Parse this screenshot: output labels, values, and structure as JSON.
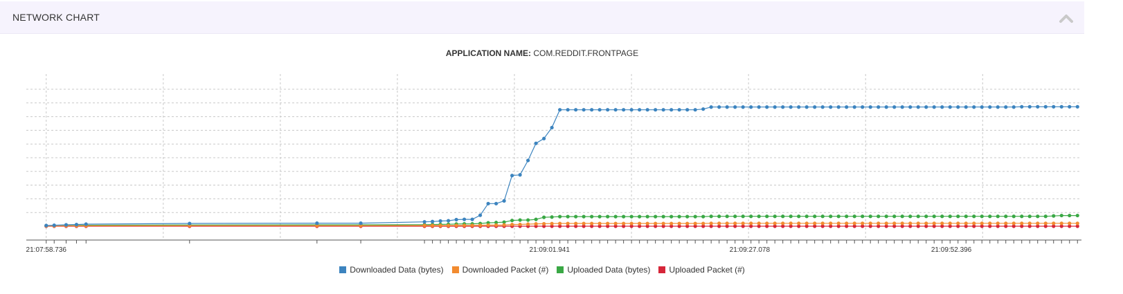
{
  "panel": {
    "title": "NETWORK CHART",
    "collapse_icon": "chevron-up-icon"
  },
  "subtitle": {
    "label": "APPLICATION NAME:",
    "value": "COM.REDDIT.FRONTPAGE"
  },
  "chart_data": {
    "type": "line",
    "title": "APPLICATION NAME: COM.REDDIT.FRONTPAGE",
    "x_tick_labels": [
      "21:07:58.736",
      "21:09:01.941",
      "21:09:27.078",
      "21:09:52.396"
    ],
    "x_tick_values": [
      0,
      63.205,
      88.342,
      113.66
    ],
    "x_range": [
      -2.5,
      130
    ],
    "y_range": [
      0,
      10
    ],
    "y_axis_labels_shown": false,
    "grid": true,
    "legend_position": "bottom",
    "x": [
      0,
      1,
      2.5,
      3.8,
      5,
      18,
      34,
      39.5,
      47.5,
      48.5,
      49.5,
      50.5,
      51.5,
      52.5,
      53.5,
      54.5,
      55.5,
      56.5,
      57.5,
      58.5,
      59.5,
      60.5,
      61.5,
      62.5,
      63.5,
      64.5,
      65.5,
      66.5,
      67.5,
      68.5,
      69.5,
      70.5,
      71.5,
      72.5,
      73.5,
      74.5,
      75.5,
      76.5,
      77.5,
      78.5,
      79.5,
      80.5,
      81.5,
      82.5,
      83.5,
      84.5,
      85.5,
      86.5,
      87.5,
      88.5,
      89.5,
      90.5,
      91.5,
      92.5,
      93.5,
      94.5,
      95.5,
      96.5,
      97.5,
      98.5,
      99.5,
      100.5,
      101.5,
      102.5,
      103.5,
      104.5,
      105.5,
      106.5,
      107.5,
      108.5,
      109.5,
      110.5,
      111.5,
      112.5,
      113.5,
      114.5,
      115.5,
      116.5,
      117.5,
      118.5,
      119.5,
      120.5,
      121.5,
      122.5,
      123.5,
      124.5,
      125.5,
      126.5,
      127.5,
      128.5,
      129.5
    ],
    "series": [
      {
        "name": "Downloaded Data (bytes)",
        "color": "#3c84bf",
        "values": [
          0.05,
          0.07,
          0.1,
          0.12,
          0.15,
          0.2,
          0.22,
          0.22,
          0.32,
          0.34,
          0.38,
          0.4,
          0.48,
          0.5,
          0.5,
          0.8,
          1.65,
          1.65,
          1.85,
          3.7,
          3.75,
          4.8,
          6.05,
          6.4,
          7.2,
          8.5,
          8.5,
          8.5,
          8.5,
          8.5,
          8.5,
          8.5,
          8.5,
          8.5,
          8.5,
          8.5,
          8.5,
          8.5,
          8.5,
          8.5,
          8.5,
          8.5,
          8.5,
          8.55,
          8.7,
          8.7,
          8.7,
          8.7,
          8.7,
          8.7,
          8.7,
          8.7,
          8.7,
          8.7,
          8.7,
          8.7,
          8.7,
          8.7,
          8.7,
          8.7,
          8.7,
          8.7,
          8.7,
          8.7,
          8.7,
          8.7,
          8.7,
          8.7,
          8.7,
          8.7,
          8.7,
          8.7,
          8.7,
          8.7,
          8.7,
          8.7,
          8.7,
          8.7,
          8.7,
          8.7,
          8.7,
          8.7,
          8.7,
          8.72,
          8.72,
          8.72,
          8.72,
          8.72,
          8.72,
          8.72,
          8.72
        ]
      },
      {
        "name": "Downloaded Packet (#)",
        "color": "#f28b30",
        "values": [
          0.02,
          0.02,
          0.03,
          0.03,
          0.03,
          0.04,
          0.04,
          0.04,
          0.05,
          0.05,
          0.05,
          0.05,
          0.06,
          0.06,
          0.06,
          0.07,
          0.08,
          0.08,
          0.09,
          0.12,
          0.13,
          0.15,
          0.17,
          0.18,
          0.19,
          0.2,
          0.2,
          0.2,
          0.2,
          0.2,
          0.2,
          0.2,
          0.2,
          0.2,
          0.2,
          0.2,
          0.2,
          0.2,
          0.2,
          0.2,
          0.2,
          0.2,
          0.2,
          0.2,
          0.21,
          0.21,
          0.21,
          0.21,
          0.21,
          0.21,
          0.21,
          0.21,
          0.21,
          0.21,
          0.21,
          0.21,
          0.21,
          0.21,
          0.21,
          0.21,
          0.21,
          0.21,
          0.21,
          0.21,
          0.21,
          0.21,
          0.21,
          0.21,
          0.21,
          0.21,
          0.21,
          0.21,
          0.21,
          0.21,
          0.21,
          0.21,
          0.21,
          0.21,
          0.21,
          0.21,
          0.21,
          0.21,
          0.21,
          0.21,
          0.21,
          0.21,
          0.21,
          0.21,
          0.21,
          0.21,
          0.21
        ]
      },
      {
        "name": "Uploaded Data (bytes)",
        "color": "#3aa845",
        "values": [
          0.03,
          0.04,
          0.05,
          0.06,
          0.07,
          0.09,
          0.1,
          0.1,
          0.11,
          0.12,
          0.13,
          0.14,
          0.16,
          0.17,
          0.17,
          0.2,
          0.25,
          0.27,
          0.3,
          0.42,
          0.45,
          0.45,
          0.5,
          0.65,
          0.67,
          0.7,
          0.7,
          0.7,
          0.7,
          0.7,
          0.7,
          0.7,
          0.7,
          0.7,
          0.7,
          0.7,
          0.7,
          0.7,
          0.7,
          0.7,
          0.7,
          0.7,
          0.7,
          0.7,
          0.72,
          0.72,
          0.72,
          0.72,
          0.72,
          0.72,
          0.72,
          0.72,
          0.72,
          0.72,
          0.72,
          0.72,
          0.72,
          0.72,
          0.72,
          0.72,
          0.72,
          0.72,
          0.72,
          0.72,
          0.72,
          0.72,
          0.72,
          0.72,
          0.72,
          0.72,
          0.72,
          0.72,
          0.72,
          0.72,
          0.72,
          0.72,
          0.72,
          0.72,
          0.72,
          0.72,
          0.72,
          0.72,
          0.72,
          0.72,
          0.72,
          0.72,
          0.72,
          0.75,
          0.78,
          0.78,
          0.78
        ]
      },
      {
        "name": "Uploaded Packet (#)",
        "color": "#d62639",
        "values": [
          0.0,
          0.0,
          0.0,
          0.0,
          0.0,
          0.0,
          0.0,
          0.0,
          0.0,
          0.0,
          0.0,
          0.0,
          0.0,
          0.0,
          0.0,
          0.0,
          0.0,
          0.0,
          0.0,
          0.0,
          0.0,
          0.0,
          0.0,
          0.0,
          0.0,
          0.0,
          0.0,
          0.0,
          0.0,
          0.0,
          0.0,
          0.0,
          0.0,
          0.0,
          0.0,
          0.0,
          0.0,
          0.0,
          0.0,
          0.0,
          0.0,
          0.0,
          0.0,
          0.0,
          0.0,
          0.0,
          0.0,
          0.0,
          0.0,
          0.0,
          0.0,
          0.0,
          0.0,
          0.0,
          0.0,
          0.0,
          0.0,
          0.0,
          0.0,
          0.0,
          0.0,
          0.0,
          0.0,
          0.0,
          0.0,
          0.0,
          0.0,
          0.0,
          0.0,
          0.0,
          0.0,
          0.0,
          0.0,
          0.0,
          0.0,
          0.0,
          0.0,
          0.0,
          0.0,
          0.0,
          0.0,
          0.0,
          0.0,
          0.0,
          0.0,
          0.0,
          0.0,
          0.0,
          0.0,
          0.0,
          0.0
        ]
      }
    ]
  }
}
